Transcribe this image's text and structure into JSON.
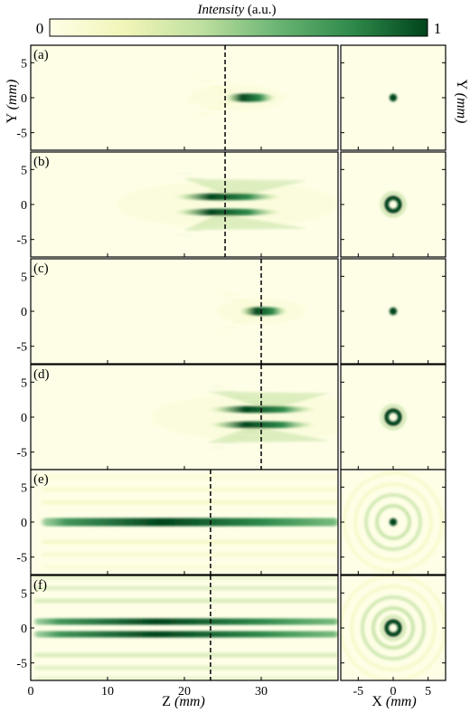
{
  "colorbar": {
    "title_italic": "Intensity",
    "title_unit": "(a.u.)",
    "min_label": "0",
    "max_label": "1",
    "colors": [
      "#fefee6",
      "#f1f5b7",
      "#bfe0a0",
      "#6bb574",
      "#2f8a4b",
      "#00441b"
    ]
  },
  "axes": {
    "left_ylabel": "Y",
    "left_ylabel_unit": "(mm)",
    "right_ylabel": "Y",
    "right_ylabel_unit": "(mm)",
    "xlabel_left": "Z",
    "xlabel_left_unit": "(mm)",
    "xlabel_right": "X",
    "xlabel_right_unit": "(mm)",
    "left_xticks": [
      "0",
      "10",
      "20",
      "30"
    ],
    "left_xtick_values": [
      0,
      10,
      20,
      30
    ],
    "left_xlim": [
      0,
      40
    ],
    "right_xticks": [
      "-5",
      "0",
      "5"
    ],
    "right_xtick_values": [
      -5,
      0,
      5
    ],
    "right_xlim": [
      -7.5,
      7.5
    ],
    "yticks": [
      "5",
      "0",
      "-5"
    ],
    "ytick_values": [
      5,
      0,
      -5
    ],
    "ylim": [
      -7.5,
      7.5
    ]
  },
  "panels": [
    {
      "label": "(a)",
      "profile": "solid",
      "z_dash": 25.3,
      "beam_start": 25.0,
      "beam_end": 32.0,
      "peak_z": 26.8,
      "spot": "dot"
    },
    {
      "label": "(b)",
      "profile": "hollow",
      "z_dash": 25.3,
      "beam_start": 20.0,
      "beam_end": 36.0,
      "peak_z": 25.5,
      "spot": "ring"
    },
    {
      "label": "(c)",
      "profile": "solid",
      "z_dash": 30.0,
      "beam_start": 27.0,
      "beam_end": 33.5,
      "peak_z": 30.0,
      "spot": "dot"
    },
    {
      "label": "(d)",
      "profile": "hollow",
      "z_dash": 30.0,
      "beam_start": 23.0,
      "beam_end": 39.0,
      "peak_z": 30.0,
      "spot": "ring"
    },
    {
      "label": "(e)",
      "profile": "bessel_solid",
      "z_dash": 23.4,
      "beam_start": 1.5,
      "beam_end": 40.0,
      "peak_z": 22.0,
      "spot": "dot_rings"
    },
    {
      "label": "(f)",
      "profile": "bessel_hollow",
      "z_dash": 23.4,
      "beam_start": 0.5,
      "beam_end": 40.0,
      "peak_z": 22.0,
      "spot": "ring_rings"
    }
  ]
}
